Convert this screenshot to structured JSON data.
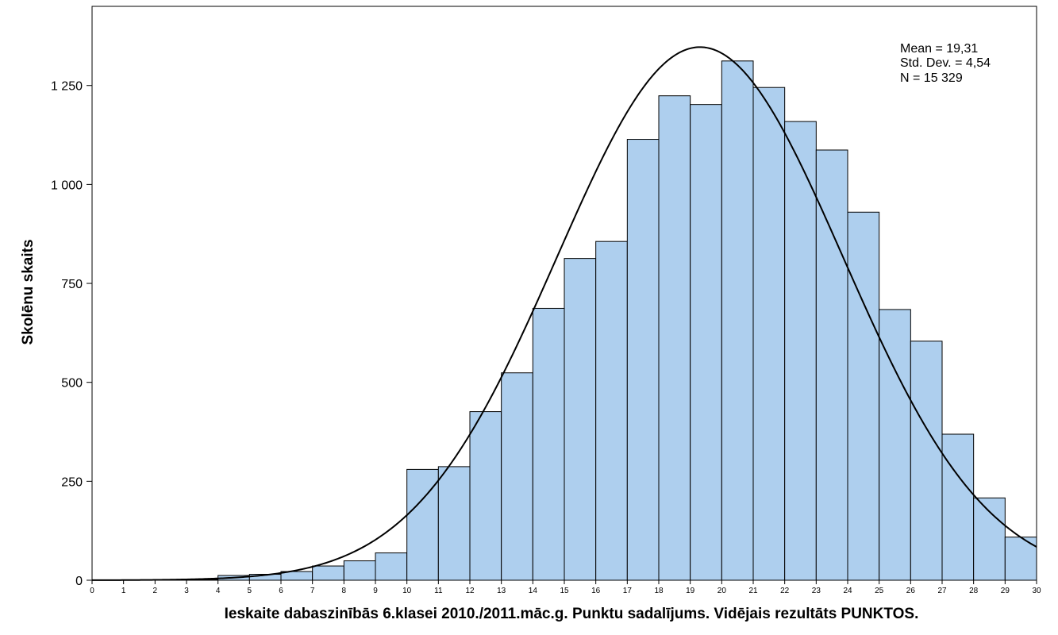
{
  "chart_data": {
    "type": "bar",
    "xlabel": "Ieskaite  dabaszinībās 6.klasei 2010./2011.māc.g. Punktu sadalījums. Vidējais rezultāts PUNKTOS.",
    "ylabel": "Skolēnu skaits",
    "xlim": [
      0,
      30
    ],
    "ylim": [
      0,
      1450
    ],
    "x_ticks": [
      0,
      1,
      2,
      3,
      4,
      5,
      6,
      7,
      8,
      9,
      10,
      11,
      12,
      13,
      14,
      15,
      16,
      17,
      18,
      19,
      20,
      21,
      22,
      23,
      24,
      25,
      26,
      27,
      28,
      29,
      30
    ],
    "x_tick_labels": [
      "0",
      "1",
      "2",
      "3",
      "4",
      "5",
      "6",
      "7",
      "8",
      "9",
      "10",
      "11",
      "12",
      "13",
      "14",
      "15",
      "16",
      "17",
      "18",
      "19",
      "20",
      "21",
      "22",
      "23",
      "24",
      "25",
      "26",
      "27",
      "28",
      "29",
      "30"
    ],
    "y_ticks": [
      0,
      250,
      500,
      750,
      1000,
      1250
    ],
    "y_tick_labels": [
      "0",
      "250",
      "500",
      "750",
      "1 000",
      "1 250"
    ],
    "bins": [
      {
        "x0": 0,
        "x1": 1,
        "value": 0
      },
      {
        "x0": 1,
        "x1": 2,
        "value": 0
      },
      {
        "x0": 2,
        "x1": 3,
        "value": 0
      },
      {
        "x0": 3,
        "x1": 4,
        "value": 2
      },
      {
        "x0": 4,
        "x1": 5,
        "value": 12
      },
      {
        "x0": 5,
        "x1": 6,
        "value": 15
      },
      {
        "x0": 6,
        "x1": 7,
        "value": 22
      },
      {
        "x0": 7,
        "x1": 8,
        "value": 36
      },
      {
        "x0": 8,
        "x1": 9,
        "value": 49
      },
      {
        "x0": 9,
        "x1": 10,
        "value": 69
      },
      {
        "x0": 10,
        "x1": 11,
        "value": 280
      },
      {
        "x0": 11,
        "x1": 12,
        "value": 287
      },
      {
        "x0": 12,
        "x1": 13,
        "value": 426
      },
      {
        "x0": 13,
        "x1": 14,
        "value": 524
      },
      {
        "x0": 14,
        "x1": 15,
        "value": 687
      },
      {
        "x0": 15,
        "x1": 16,
        "value": 813
      },
      {
        "x0": 16,
        "x1": 17,
        "value": 856
      },
      {
        "x0": 17,
        "x1": 18,
        "value": 1114
      },
      {
        "x0": 18,
        "x1": 19,
        "value": 1224
      },
      {
        "x0": 19,
        "x1": 20,
        "value": 1202
      },
      {
        "x0": 20,
        "x1": 21,
        "value": 1312
      },
      {
        "x0": 21,
        "x1": 22,
        "value": 1245
      },
      {
        "x0": 22,
        "x1": 23,
        "value": 1159
      },
      {
        "x0": 23,
        "x1": 24,
        "value": 1087
      },
      {
        "x0": 24,
        "x1": 25,
        "value": 930
      },
      {
        "x0": 25,
        "x1": 26,
        "value": 684
      },
      {
        "x0": 26,
        "x1": 27,
        "value": 604
      },
      {
        "x0": 27,
        "x1": 28,
        "value": 369
      },
      {
        "x0": 28,
        "x1": 29,
        "value": 208
      },
      {
        "x0": 29,
        "x1": 30,
        "value": 109
      }
    ],
    "normal_curve": {
      "mean": 19.31,
      "std": 4.54,
      "n": 15329,
      "bin_width": 1
    },
    "stats": [
      "Mean = 19,31",
      "Std. Dev. = 4,54",
      "N = 15 329"
    ],
    "grid": false,
    "bar_fill": "#aecfee",
    "bar_stroke": "#000000",
    "curve_color": "#000000"
  }
}
